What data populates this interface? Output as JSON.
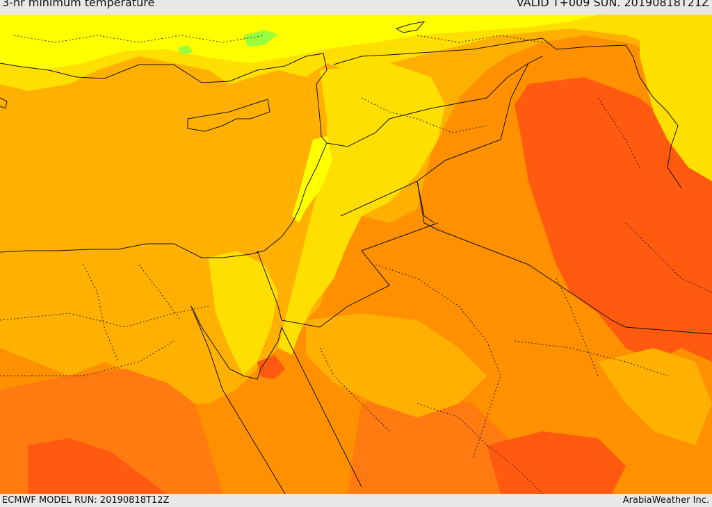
{
  "header": {
    "title": "3-hr minimum temperature",
    "valid": "VALID T+009 SUN. 20190818T21Z"
  },
  "footer": {
    "model_run": "ECMWF MODEL RUN: 20190818T12Z",
    "credit": "ArabiaWeather Inc."
  },
  "palette": {
    "yellow": "#ffff00",
    "light_yellow": "#ffdf00",
    "orange_light": "#ffb000",
    "orange": "#ff9000",
    "orange_dark": "#ff7a10",
    "red_orange": "#ff5a10",
    "green": "#9aff3a"
  }
}
